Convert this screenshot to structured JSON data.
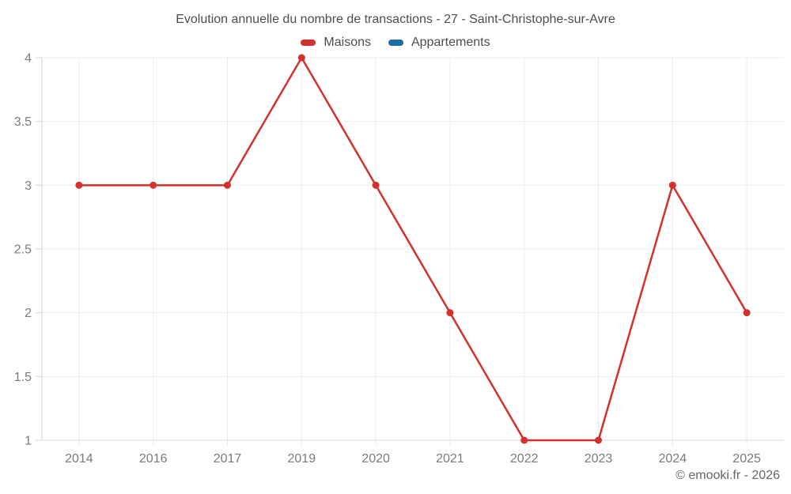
{
  "chart_data": {
    "type": "line",
    "title": "Evolution annuelle du nombre de transactions - 27 - Saint-Christophe-sur-Avre",
    "categories": [
      "2014",
      "2016",
      "2017",
      "2019",
      "2020",
      "2021",
      "2022",
      "2023",
      "2024",
      "2025"
    ],
    "series": [
      {
        "name": "Maisons",
        "color": "#d2312c",
        "values": [
          3,
          3,
          3,
          4,
          3,
          2,
          1,
          1,
          3,
          2
        ]
      },
      {
        "name": "Appartements",
        "color": "#1c6ea4",
        "values": []
      }
    ],
    "ylim": [
      1,
      4
    ],
    "yticks": [
      1,
      1.5,
      2,
      2.5,
      3,
      3.5,
      4
    ],
    "grid": true,
    "legend_position": "top"
  },
  "footer": {
    "copyright": "© emooki.fr - 2026"
  },
  "colors": {
    "background": "#ffffff",
    "grid": "#ececec",
    "axis": "#d6d6d6",
    "tick_label": "#7a7a7a",
    "title_text": "#4d4d4d",
    "copyright_text": "#666666"
  }
}
